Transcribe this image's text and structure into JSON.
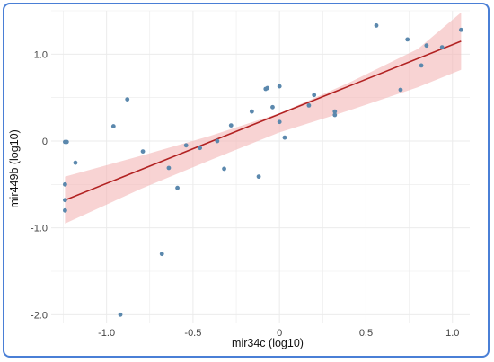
{
  "chart_data": {
    "type": "scatter",
    "title": "",
    "xlabel": "mir34c (log10)",
    "ylabel": "mir449b (log10)",
    "xlim": [
      -1.32,
      1.1
    ],
    "ylim": [
      -2.1,
      1.5
    ],
    "x_ticks": [
      -1.0,
      -0.5,
      0,
      0.5,
      1.0
    ],
    "x_tick_labels": [
      "-1.0",
      "-0.5",
      "0",
      "0.5",
      "1.0"
    ],
    "y_ticks": [
      -2.0,
      -1.0,
      0,
      1.0
    ],
    "y_tick_labels": [
      "-2.0",
      "-1.0",
      "0",
      "1.0"
    ],
    "grid": true,
    "point_color": "#5b88ad",
    "fit_color": "#b22222",
    "band_color": "#f4b6b6",
    "x": [
      -1.24,
      -1.24,
      -1.24,
      -1.24,
      -1.23,
      -1.18,
      -0.96,
      -0.88,
      -0.79,
      -0.68,
      -0.64,
      -0.59,
      -0.54,
      -0.46,
      -0.36,
      -0.32,
      -0.28,
      -0.16,
      -0.12,
      -0.08,
      -0.07,
      -0.04,
      0.0,
      0.0,
      0.03,
      0.17,
      0.2,
      0.32,
      0.32,
      0.56,
      0.7,
      0.74,
      0.82,
      0.85,
      0.94,
      1.05
    ],
    "y": [
      -0.01,
      -0.5,
      -0.68,
      -0.8,
      -0.01,
      -0.25,
      0.17,
      0.48,
      -0.12,
      -1.3,
      -0.31,
      -0.54,
      -0.05,
      -0.08,
      0.0,
      -0.32,
      0.18,
      0.34,
      -0.41,
      0.6,
      0.61,
      0.39,
      0.63,
      0.22,
      0.04,
      0.41,
      0.53,
      0.3,
      0.34,
      1.33,
      0.59,
      1.17,
      0.87,
      1.1,
      1.08,
      1.28
    ],
    "fit_line": {
      "x": [
        -1.24,
        1.05
      ],
      "y": [
        -0.68,
        1.15
      ]
    },
    "band": {
      "x": [
        -1.24,
        -0.8,
        -0.4,
        0.0,
        0.4,
        0.8,
        1.05
      ],
      "lower": [
        -0.95,
        -0.55,
        -0.22,
        0.1,
        0.35,
        0.62,
        0.82
      ],
      "upper": [
        -0.41,
        -0.17,
        0.06,
        0.32,
        0.67,
        1.06,
        1.48
      ]
    },
    "extra_points": {
      "x": [
        -0.92
      ],
      "y": [
        -2.0
      ]
    }
  }
}
